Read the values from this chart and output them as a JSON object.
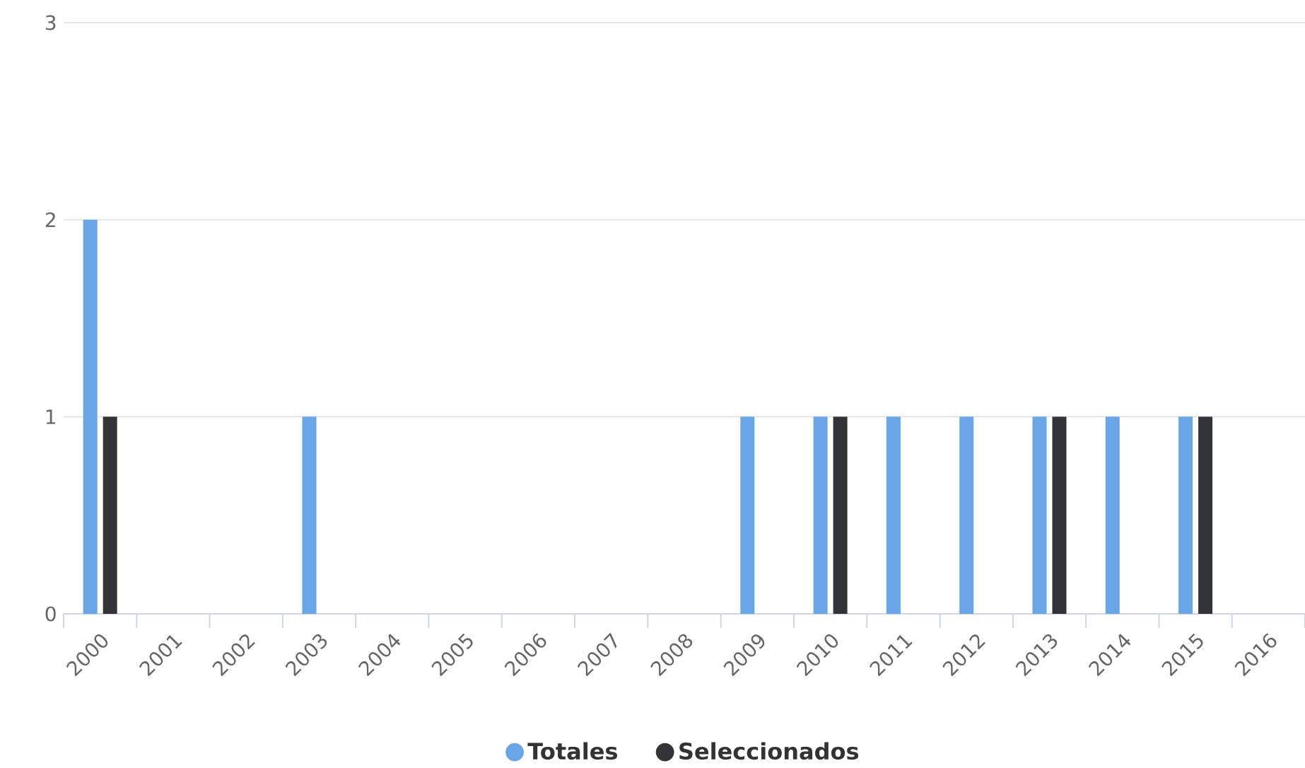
{
  "chart_data": {
    "type": "bar",
    "categories": [
      "2000",
      "2001",
      "2002",
      "2003",
      "2004",
      "2005",
      "2006",
      "2007",
      "2008",
      "2009",
      "2010",
      "2011",
      "2012",
      "2013",
      "2014",
      "2015",
      "2016"
    ],
    "series": [
      {
        "name": "Totales",
        "color": "#6aa5e6",
        "values": [
          2,
          0,
          0,
          1,
          0,
          0,
          0,
          0,
          0,
          1,
          1,
          1,
          1,
          1,
          1,
          1,
          0
        ]
      },
      {
        "name": "Seleccionados",
        "color": "#333438",
        "values": [
          1,
          0,
          0,
          0,
          0,
          0,
          0,
          0,
          0,
          0,
          1,
          0,
          0,
          1,
          0,
          1,
          0
        ]
      }
    ],
    "ylim": [
      0,
      3
    ],
    "yticks": [
      0,
      1,
      2,
      3
    ],
    "grid": "y",
    "legend": "bottom"
  }
}
